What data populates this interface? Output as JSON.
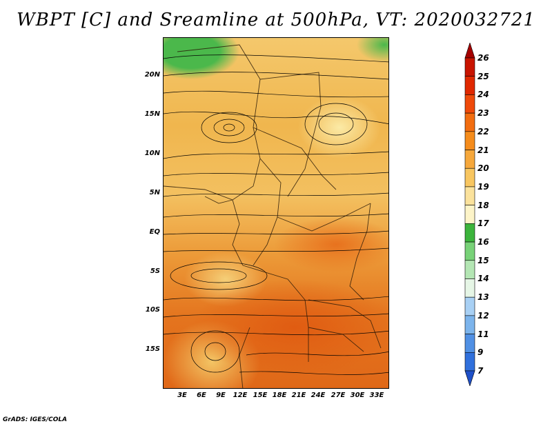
{
  "title": "WBPT [C] and Sreamline at 500hPa, VT: 2020032721",
  "credit": "GrADS: IGES/COLA",
  "map": {
    "lat_labels": [
      "20N",
      "15N",
      "10N",
      "5N",
      "EQ",
      "5S",
      "10S",
      "15S"
    ],
    "lon_labels": [
      "3E",
      "6E",
      "9E",
      "12E",
      "15E",
      "18E",
      "21E",
      "24E",
      "27E",
      "30E",
      "33E"
    ],
    "field": "wet bulb potential temperature",
    "overlay": "streamlines"
  },
  "colorbar": {
    "labels": [
      "26",
      "25",
      "24",
      "23",
      "22",
      "21",
      "20",
      "19",
      "18",
      "17",
      "16",
      "15",
      "14",
      "13",
      "12",
      "11",
      "9",
      "7"
    ],
    "colors": [
      "#a50000",
      "#c81400",
      "#e02800",
      "#ef4a0a",
      "#f26d10",
      "#f58c1c",
      "#f6a83c",
      "#f8c660",
      "#fbe29c",
      "#fdf4c8",
      "#3cb43c",
      "#78d278",
      "#b4e6b4",
      "#e6f6e6",
      "#a8d0f4",
      "#7cb4ec",
      "#5090e4",
      "#3070dc",
      "#1e50c8"
    ]
  }
}
